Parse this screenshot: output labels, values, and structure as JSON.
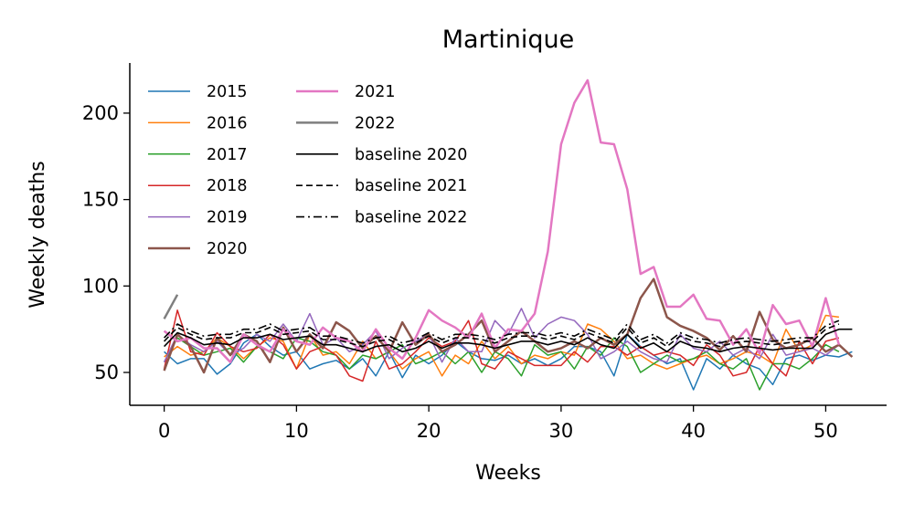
{
  "chart_data": {
    "type": "line",
    "title": "Martinique",
    "xlabel": "Weeks",
    "ylabel": "Weekly deaths",
    "xlim": [
      -2.6,
      54.6
    ],
    "ylim": [
      31,
      229
    ],
    "xticks": [
      0,
      10,
      20,
      30,
      40,
      50
    ],
    "yticks": [
      50,
      100,
      150,
      200
    ],
    "grid": false,
    "legend_position": "top-left",
    "series": [
      {
        "name": "2015",
        "color": "#1f77b4",
        "width": 1.5,
        "dash": "solid",
        "x": [
          0,
          1,
          2,
          3,
          4,
          5,
          6,
          7,
          8,
          9,
          10,
          11,
          12,
          13,
          14,
          15,
          16,
          17,
          18,
          19,
          20,
          21,
          22,
          23,
          24,
          25,
          26,
          27,
          28,
          29,
          30,
          31,
          32,
          33,
          34,
          35,
          36,
          37,
          38,
          39,
          40,
          41,
          42,
          43,
          44,
          45,
          46,
          47,
          48,
          49,
          50,
          51,
          52
        ],
        "values": [
          62,
          55,
          58,
          58,
          49,
          55,
          67,
          72,
          65,
          60,
          62,
          52,
          55,
          57,
          52,
          58,
          48,
          62,
          47,
          60,
          55,
          60,
          68,
          62,
          58,
          57,
          60,
          55,
          58,
          54,
          58,
          65,
          65,
          62,
          48,
          72,
          65,
          60,
          55,
          58,
          40,
          58,
          52,
          60,
          55,
          52,
          43,
          58,
          60,
          57,
          60,
          59,
          62
        ]
      },
      {
        "name": "2016",
        "color": "#ff7f0e",
        "width": 1.5,
        "dash": "solid",
        "x": [
          0,
          1,
          2,
          3,
          4,
          5,
          6,
          7,
          8,
          9,
          10,
          11,
          12,
          13,
          14,
          15,
          16,
          17,
          18,
          19,
          20,
          21,
          22,
          23,
          24,
          25,
          26,
          27,
          28,
          29,
          30,
          31,
          32,
          33,
          34,
          35,
          36,
          37,
          38,
          39,
          40,
          41,
          42,
          43,
          44,
          45,
          46,
          47,
          48,
          49,
          50,
          51
        ],
        "values": [
          59,
          65,
          60,
          62,
          70,
          65,
          58,
          65,
          70,
          68,
          52,
          72,
          60,
          62,
          55,
          68,
          58,
          62,
          52,
          58,
          62,
          48,
          60,
          55,
          68,
          58,
          65,
          55,
          60,
          58,
          62,
          60,
          78,
          75,
          68,
          58,
          60,
          55,
          52,
          55,
          58,
          60,
          55,
          58,
          62,
          60,
          55,
          75,
          62,
          66,
          83,
          82
        ]
      },
      {
        "name": "2017",
        "color": "#2ca02c",
        "width": 1.5,
        "dash": "solid",
        "x": [
          0,
          1,
          2,
          3,
          4,
          5,
          6,
          7,
          8,
          9,
          10,
          11,
          12,
          13,
          14,
          15,
          16,
          17,
          18,
          19,
          20,
          21,
          22,
          23,
          24,
          25,
          26,
          27,
          28,
          29,
          30,
          31,
          32,
          33,
          34,
          35,
          36,
          37,
          38,
          39,
          40,
          41,
          42,
          43,
          44,
          45,
          46,
          47,
          48,
          49,
          50,
          51
        ],
        "values": [
          56,
          70,
          65,
          60,
          62,
          64,
          56,
          65,
          62,
          58,
          70,
          68,
          62,
          60,
          52,
          60,
          58,
          62,
          66,
          55,
          58,
          62,
          55,
          62,
          50,
          62,
          58,
          48,
          66,
          60,
          62,
          52,
          65,
          60,
          70,
          65,
          50,
          55,
          60,
          56,
          58,
          62,
          55,
          52,
          58,
          40,
          55,
          55,
          52,
          58,
          66,
          62
        ]
      },
      {
        "name": "2018",
        "color": "#d62728",
        "width": 1.5,
        "dash": "solid",
        "x": [
          0,
          1,
          2,
          3,
          4,
          5,
          6,
          7,
          8,
          9,
          10,
          11,
          12,
          13,
          14,
          15,
          16,
          17,
          18,
          19,
          20,
          21,
          22,
          23,
          24,
          25,
          26,
          27,
          28,
          29,
          30,
          31,
          32,
          33,
          34,
          35,
          36,
          37,
          38,
          39,
          40,
          41,
          42,
          43,
          44,
          45,
          46,
          47,
          48,
          49,
          50,
          51
        ],
        "values": [
          52,
          86,
          62,
          60,
          73,
          65,
          62,
          64,
          72,
          66,
          52,
          62,
          65,
          60,
          48,
          45,
          68,
          52,
          55,
          62,
          70,
          65,
          68,
          80,
          55,
          52,
          62,
          58,
          54,
          54,
          54,
          62,
          56,
          65,
          65,
          60,
          65,
          60,
          62,
          60,
          54,
          66,
          60,
          48,
          50,
          65,
          55,
          48,
          68,
          55,
          68,
          70
        ]
      },
      {
        "name": "2019",
        "color": "#9467bd",
        "width": 1.5,
        "dash": "solid",
        "x": [
          0,
          1,
          2,
          3,
          4,
          5,
          6,
          7,
          8,
          9,
          10,
          11,
          12,
          13,
          14,
          15,
          16,
          17,
          18,
          19,
          20,
          21,
          22,
          23,
          24,
          25,
          26,
          27,
          28,
          29,
          30,
          31,
          32,
          33,
          34,
          35,
          36,
          37,
          38,
          39,
          40,
          41,
          42,
          43,
          44,
          45,
          46,
          47,
          48,
          49,
          50,
          51
        ],
        "values": [
          56,
          72,
          66,
          62,
          68,
          60,
          64,
          72,
          68,
          78,
          68,
          84,
          66,
          70,
          62,
          66,
          74,
          58,
          64,
          68,
          72,
          56,
          70,
          62,
          62,
          80,
          72,
          87,
          70,
          78,
          82,
          80,
          72,
          58,
          62,
          68,
          62,
          58,
          56,
          72,
          64,
          62,
          68,
          60,
          64,
          58,
          72,
          60,
          62,
          64,
          60,
          66
        ]
      },
      {
        "name": "2020",
        "color": "#8c564b",
        "width": 2.5,
        "dash": "solid",
        "x": [
          0,
          1,
          2,
          3,
          4,
          5,
          6,
          7,
          8,
          9,
          10,
          11,
          12,
          13,
          14,
          15,
          16,
          17,
          18,
          19,
          20,
          21,
          22,
          23,
          24,
          25,
          26,
          27,
          28,
          29,
          30,
          31,
          32,
          33,
          34,
          35,
          36,
          37,
          38,
          39,
          40,
          41,
          42,
          43,
          44,
          45,
          46,
          47,
          48,
          49,
          50,
          51,
          52
        ],
        "values": [
          51,
          72,
          65,
          50,
          70,
          60,
          72,
          68,
          56,
          76,
          62,
          72,
          64,
          79,
          74,
          64,
          71,
          62,
          79,
          66,
          72,
          62,
          66,
          72,
          80,
          62,
          68,
          74,
          68,
          62,
          64,
          68,
          64,
          70,
          66,
          72,
          93,
          104,
          82,
          77,
          74,
          70,
          63,
          71,
          62,
          85,
          69,
          64,
          66,
          70,
          62,
          66,
          59
        ]
      },
      {
        "name": "2021",
        "color": "#e377c2",
        "width": 2.5,
        "dash": "solid",
        "x": [
          0,
          1,
          2,
          3,
          4,
          5,
          6,
          7,
          8,
          9,
          10,
          11,
          12,
          13,
          14,
          15,
          16,
          17,
          18,
          19,
          20,
          21,
          22,
          23,
          24,
          25,
          26,
          27,
          28,
          29,
          30,
          31,
          32,
          33,
          34,
          35,
          36,
          37,
          38,
          39,
          40,
          41,
          42,
          43,
          44,
          45,
          46,
          47,
          48,
          49,
          50,
          51
        ],
        "values": [
          74,
          68,
          70,
          64,
          64,
          56,
          72,
          66,
          62,
          75,
          68,
          66,
          76,
          70,
          68,
          62,
          75,
          64,
          58,
          70,
          86,
          80,
          76,
          70,
          84,
          64,
          75,
          74,
          84,
          120,
          182,
          206,
          219,
          183,
          182,
          156,
          107,
          111,
          88,
          88,
          95,
          81,
          80,
          66,
          75,
          61,
          89,
          78,
          80,
          65,
          93,
          66
        ]
      },
      {
        "name": "2022",
        "color": "#7f7f7f",
        "width": 2.5,
        "dash": "solid",
        "x": [
          0,
          1
        ],
        "values": [
          81,
          95
        ]
      },
      {
        "name": "baseline 2020",
        "color": "#000000",
        "width": 1.6,
        "dash": "solid",
        "x": [
          0,
          1,
          2,
          3,
          4,
          5,
          6,
          7,
          8,
          9,
          10,
          11,
          12,
          13,
          14,
          15,
          16,
          17,
          18,
          19,
          20,
          21,
          22,
          23,
          24,
          25,
          26,
          27,
          28,
          29,
          30,
          31,
          32,
          33,
          34,
          35,
          36,
          37,
          38,
          39,
          40,
          41,
          42,
          43,
          44,
          45,
          46,
          47,
          48,
          49,
          50,
          51,
          52
        ],
        "values": [
          65,
          73,
          70,
          66,
          67,
          66,
          70,
          70,
          72,
          69,
          70,
          71,
          66,
          66,
          64,
          62,
          65,
          66,
          62,
          64,
          68,
          64,
          67,
          67,
          66,
          64,
          66,
          68,
          68,
          66,
          68,
          66,
          70,
          66,
          64,
          72,
          64,
          67,
          62,
          68,
          65,
          64,
          62,
          64,
          65,
          64,
          63,
          64,
          64,
          64,
          72,
          75,
          75
        ]
      },
      {
        "name": "baseline 2021",
        "color": "#000000",
        "width": 1.6,
        "dash": "dashed",
        "x": [
          0,
          1,
          2,
          3,
          4,
          5,
          6,
          7,
          8,
          9,
          10,
          11,
          12,
          13,
          14,
          15,
          16,
          17,
          18,
          19,
          20,
          21,
          22,
          23,
          24,
          25,
          26,
          27,
          28,
          29,
          30,
          31,
          32,
          33,
          34,
          35,
          36,
          37,
          38,
          39,
          40,
          41,
          42,
          43,
          44,
          45,
          46,
          47,
          48,
          49,
          50,
          51
        ],
        "values": [
          68,
          76,
          72,
          69,
          70,
          70,
          73,
          73,
          76,
          72,
          73,
          74,
          69,
          69,
          67,
          65,
          68,
          69,
          65,
          67,
          71,
          67,
          70,
          70,
          69,
          67,
          70,
          71,
          71,
          69,
          71,
          69,
          73,
          70,
          67,
          76,
          67,
          70,
          65,
          71,
          68,
          67,
          65,
          67,
          68,
          67,
          66,
          67,
          68,
          68,
          75,
          78
        ]
      },
      {
        "name": "baseline 2022",
        "color": "#000000",
        "width": 1.6,
        "dash": "dashdot",
        "x": [
          0,
          1,
          2,
          3,
          4,
          5,
          6,
          7,
          8,
          9,
          10,
          11,
          12,
          13,
          14,
          15,
          16,
          17,
          18,
          19,
          20,
          21,
          22,
          23,
          24,
          25,
          26,
          27,
          28,
          29,
          30,
          31,
          32,
          33,
          34,
          35,
          36,
          37,
          38,
          39,
          40,
          41,
          42,
          43,
          44,
          45,
          46,
          47,
          48,
          49,
          50,
          51
        ],
        "values": [
          70,
          78,
          74,
          71,
          72,
          72,
          75,
          75,
          78,
          74,
          75,
          76,
          71,
          71,
          69,
          67,
          70,
          71,
          67,
          69,
          73,
          69,
          72,
          72,
          71,
          69,
          72,
          73,
          73,
          71,
          73,
          71,
          75,
          72,
          69,
          78,
          69,
          72,
          67,
          73,
          70,
          69,
          67,
          69,
          70,
          69,
          68,
          69,
          70,
          70,
          77,
          80
        ]
      }
    ]
  }
}
